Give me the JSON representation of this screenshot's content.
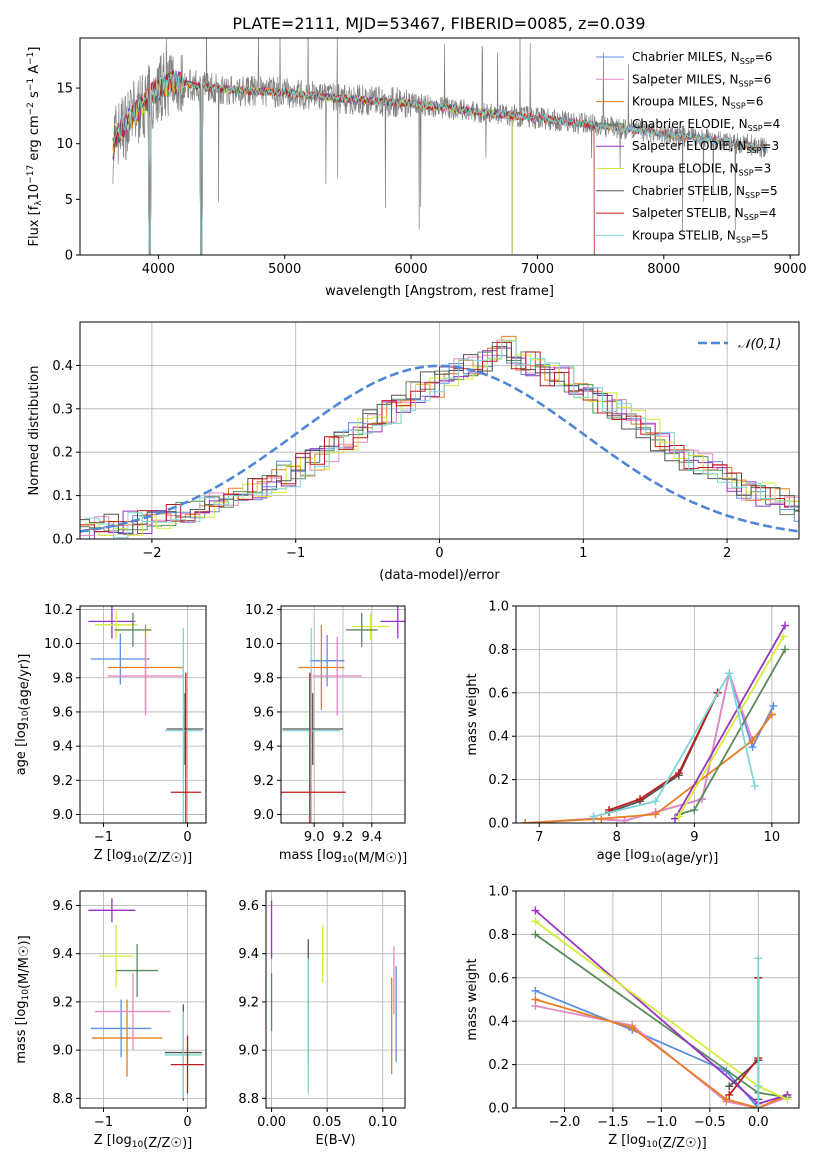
{
  "figure_title": "PLATE=2111, MJD=53467, FIBERID=0085, z=0.039",
  "colors": {
    "Chabrier MILES": "#5b8ee6",
    "Salpeter MILES": "#e58ac7",
    "Kroupa MILES": "#e87d22",
    "Chabrier ELODIE": "#5a8a5a",
    "Salpeter ELODIE": "#9a33c1",
    "Kroupa ELODIE": "#d4ec3a",
    "Chabrier STELIB": "#555555",
    "Salpeter STELIB": "#c01b1b",
    "Kroupa STELIB": "#7fd6d6",
    "data": "#808080",
    "normal": "#4f86d6",
    "grid": "#b0b0b0"
  },
  "chart_data": [
    {
      "id": "spectrum",
      "type": "line",
      "title": "PLATE=2111, MJD=53467, FIBERID=0085, z=0.039",
      "xlabel": "wavelength [Angstrom, rest frame]",
      "ylabel": "Flux [f_λ10^-17 erg cm^-2 s^-1 A^-1]",
      "xlim": [
        3380,
        9070
      ],
      "ylim": [
        0,
        19.5
      ],
      "xticks": [
        4000,
        5000,
        6000,
        7000,
        8000,
        9000
      ],
      "yticks": [
        0,
        5,
        10,
        15
      ],
      "grid": false,
      "legend_position": "top-right",
      "legend": [
        {
          "label": "Chabrier MILES, N",
          "sub": "SSP",
          "value": "=6",
          "series": "Chabrier MILES"
        },
        {
          "label": "Salpeter MILES, N",
          "sub": "SSP",
          "value": "=6",
          "series": "Salpeter MILES"
        },
        {
          "label": "Kroupa MILES, N",
          "sub": "SSP",
          "value": "=6",
          "series": "Kroupa MILES"
        },
        {
          "label": "Chabrier ELODIE, N",
          "sub": "SSP",
          "value": "=4",
          "series": "Chabrier ELODIE"
        },
        {
          "label": "Salpeter ELODIE, N",
          "sub": "SSP",
          "value": "=3",
          "series": "Salpeter ELODIE"
        },
        {
          "label": "Kroupa ELODIE, N",
          "sub": "SSP",
          "value": "=3",
          "series": "Kroupa ELODIE"
        },
        {
          "label": "Chabrier STELIB, N",
          "sub": "SSP",
          "value": "=5",
          "series": "Chabrier STELIB"
        },
        {
          "label": "Salpeter STELIB, N",
          "sub": "SSP",
          "value": "=4",
          "series": "Salpeter STELIB"
        },
        {
          "label": "Kroupa STELIB, N",
          "sub": "SSP",
          "value": "=5",
          "series": "Kroupa STELIB"
        }
      ],
      "continuum": {
        "x": [
          3650,
          3800,
          3950,
          4100,
          4300,
          4600,
          5000,
          5500,
          6000,
          6500,
          7000,
          7500,
          8000,
          8500,
          8820
        ],
        "y": [
          10.5,
          12.5,
          14.5,
          15.6,
          15.2,
          14.8,
          14.6,
          14.0,
          13.6,
          12.9,
          12.3,
          11.6,
          10.9,
          10.2,
          9.6
        ]
      }
    },
    {
      "id": "residuals",
      "type": "histogram",
      "xlabel": "(data-model)/error",
      "ylabel": "Normed distribution",
      "xlim": [
        -2.5,
        2.5
      ],
      "ylim": [
        0,
        0.5
      ],
      "xticks": [
        -2,
        -1,
        0,
        1,
        2
      ],
      "yticks": [
        0,
        0.1,
        0.2,
        0.3,
        0.4
      ],
      "grid": true,
      "legend_position": "top-right",
      "legend_label": "𝒩(0,1)",
      "bin_width": 0.1,
      "reference_curve": "normal(0,1)",
      "histogram_base": [
        0.025,
        0.028,
        0.031,
        0.035,
        0.04,
        0.046,
        0.053,
        0.061,
        0.07,
        0.08,
        0.091,
        0.104,
        0.118,
        0.133,
        0.15,
        0.168,
        0.187,
        0.207,
        0.228,
        0.25,
        0.271,
        0.293,
        0.315,
        0.335,
        0.355,
        0.372,
        0.387,
        0.399,
        0.415,
        0.44,
        0.415,
        0.405,
        0.38,
        0.372,
        0.355,
        0.335,
        0.315,
        0.293,
        0.272,
        0.25,
        0.228,
        0.207,
        0.187,
        0.168,
        0.15,
        0.133,
        0.118,
        0.104,
        0.091,
        0.08,
        0.07
      ]
    },
    {
      "id": "age-vs-metallicity",
      "type": "scatter",
      "xlabel": "Z [log10(Z/Z☉)]",
      "ylabel": "age  [log10(age/yr)]",
      "xlim": [
        -1.28,
        0.22
      ],
      "ylim": [
        8.95,
        10.22
      ],
      "xticks": [
        -1,
        0
      ],
      "yticks": [
        9.0,
        9.2,
        9.4,
        9.6,
        9.8,
        10.0,
        10.2
      ],
      "grid": true,
      "points": [
        {
          "series": "Salpeter ELODIE",
          "x": -0.9,
          "xerr": 0.28,
          "y": 10.13,
          "yerr": 0.1
        },
        {
          "series": "Kroupa ELODIE",
          "x": -0.85,
          "xerr": 0.25,
          "y": 10.11,
          "yerr": 0.08
        },
        {
          "series": "Chabrier ELODIE",
          "x": -0.65,
          "xerr": 0.22,
          "y": 10.08,
          "yerr": 0.1
        },
        {
          "series": "Chabrier MILES",
          "x": -0.8,
          "xerr": 0.35,
          "y": 9.91,
          "yerr": 0.15
        },
        {
          "series": "Kroupa MILES",
          "x": -0.5,
          "xerr": 0.45,
          "y": 9.86,
          "yerr": 0.25
        },
        {
          "series": "Salpeter MILES",
          "x": -0.5,
          "xerr": 0.45,
          "y": 9.81,
          "yerr": 0.23
        },
        {
          "series": "Chabrier STELIB",
          "x": -0.03,
          "xerr": 0.22,
          "y": 9.5,
          "yerr": 0.21
        },
        {
          "series": "Kroupa STELIB",
          "x": -0.05,
          "xerr": 0.22,
          "y": 9.49,
          "yerr": 0.6
        },
        {
          "series": "Salpeter STELIB",
          "x": -0.02,
          "xerr": 0.18,
          "y": 9.13,
          "yerr": 0.7
        }
      ]
    },
    {
      "id": "age-vs-mass",
      "type": "scatter",
      "xlabel": "mass [log10(M/M☉)]",
      "ylabel": "",
      "xlim": [
        8.77,
        9.63
      ],
      "ylim": [
        8.95,
        10.22
      ],
      "xticks": [
        9.0,
        9.2,
        9.4
      ],
      "yticks": [
        9.0,
        9.2,
        9.4,
        9.6,
        9.8,
        10.0,
        10.2
      ],
      "grid": true,
      "points": [
        {
          "series": "Salpeter ELODIE",
          "x": 9.58,
          "xerr": 0.12,
          "y": 10.13,
          "yerr": 0.1
        },
        {
          "series": "Kroupa ELODIE",
          "x": 9.39,
          "xerr": 0.13,
          "y": 10.1,
          "yerr": 0.08
        },
        {
          "series": "Chabrier ELODIE",
          "x": 9.33,
          "xerr": 0.11,
          "y": 10.08,
          "yerr": 0.1
        },
        {
          "series": "Chabrier MILES",
          "x": 9.09,
          "xerr": 0.12,
          "y": 9.9,
          "yerr": 0.15
        },
        {
          "series": "Kroupa MILES",
          "x": 9.05,
          "xerr": 0.16,
          "y": 9.86,
          "yerr": 0.25
        },
        {
          "series": "Salpeter MILES",
          "x": 9.16,
          "xerr": 0.17,
          "y": 9.81,
          "yerr": 0.23
        },
        {
          "series": "Chabrier STELIB",
          "x": 8.99,
          "xerr": 0.21,
          "y": 9.5,
          "yerr": 0.21
        },
        {
          "series": "Kroupa STELIB",
          "x": 8.98,
          "xerr": 0.2,
          "y": 9.49,
          "yerr": 0.6
        },
        {
          "series": "Salpeter STELIB",
          "x": 8.97,
          "xerr": 0.25,
          "y": 9.13,
          "yerr": 0.7
        }
      ]
    },
    {
      "id": "massweight-vs-age",
      "type": "line",
      "xlabel": "age  [log10(age/yr)]",
      "ylabel": "mass weight",
      "xlim": [
        6.7,
        10.35
      ],
      "ylim": [
        0,
        1.0
      ],
      "xticks": [
        7,
        8,
        9,
        10
      ],
      "yticks": [
        0.0,
        0.2,
        0.4,
        0.6,
        0.8,
        1.0
      ],
      "grid": true,
      "series": [
        {
          "name": "Chabrier MILES",
          "x": [
            6.82,
            7.7,
            8.1,
            8.5,
            9.1,
            9.45,
            9.75,
            10.02
          ],
          "y": [
            0.0,
            0.02,
            0.01,
            0.05,
            0.11,
            0.69,
            0.35,
            0.54
          ]
        },
        {
          "name": "Salpeter MILES",
          "x": [
            6.82,
            7.7,
            8.1,
            8.5,
            9.1,
            9.45,
            9.75,
            10.0
          ],
          "y": [
            0.0,
            0.02,
            0.01,
            0.05,
            0.11,
            0.69,
            0.38,
            0.5
          ]
        },
        {
          "name": "Kroupa MILES",
          "x": [
            6.82,
            7.8,
            8.5,
            9.75,
            10.0
          ],
          "y": [
            0.0,
            0.02,
            0.04,
            0.38,
            0.5
          ]
        },
        {
          "name": "Chabrier ELODIE",
          "x": [
            8.8,
            9.0,
            10.17
          ],
          "y": [
            0.04,
            0.06,
            0.8
          ]
        },
        {
          "name": "Salpeter ELODIE",
          "x": [
            8.75,
            10.17
          ],
          "y": [
            0.02,
            0.91
          ]
        },
        {
          "name": "Kroupa ELODIE",
          "x": [
            8.8,
            10.15
          ],
          "y": [
            0.03,
            0.86
          ]
        },
        {
          "name": "Chabrier STELIB",
          "x": [
            7.9,
            8.3,
            8.8,
            9.3
          ],
          "y": [
            0.05,
            0.1,
            0.22,
            0.6
          ]
        },
        {
          "name": "Salpeter STELIB",
          "x": [
            7.9,
            8.3,
            8.8,
            9.3
          ],
          "y": [
            0.06,
            0.11,
            0.23,
            0.6
          ]
        },
        {
          "name": "Kroupa STELIB",
          "x": [
            7.7,
            8.5,
            9.45,
            9.78
          ],
          "y": [
            0.03,
            0.1,
            0.69,
            0.17
          ]
        }
      ]
    },
    {
      "id": "mass-vs-metallicity",
      "type": "scatter",
      "xlabel": "Z [log10(Z/Z☉)]",
      "ylabel": "mass [log10(M/M☉)]",
      "xlim": [
        -1.28,
        0.22
      ],
      "ylim": [
        8.76,
        9.66
      ],
      "xticks": [
        -1,
        0
      ],
      "yticks": [
        8.8,
        9.0,
        9.2,
        9.4,
        9.6
      ],
      "grid": true,
      "points": [
        {
          "series": "Salpeter ELODIE",
          "x": -0.9,
          "xerr": 0.28,
          "y": 9.58,
          "yerr": 0.05
        },
        {
          "series": "Kroupa ELODIE",
          "x": -0.85,
          "xerr": 0.2,
          "y": 9.39,
          "yerr": 0.13
        },
        {
          "series": "Chabrier ELODIE",
          "x": -0.6,
          "xerr": 0.25,
          "y": 9.33,
          "yerr": 0.11
        },
        {
          "series": "Chabrier MILES",
          "x": -0.79,
          "xerr": 0.36,
          "y": 9.09,
          "yerr": 0.12
        },
        {
          "series": "Kroupa MILES",
          "x": -0.72,
          "xerr": 0.42,
          "y": 9.05,
          "yerr": 0.16
        },
        {
          "series": "Salpeter MILES",
          "x": -0.65,
          "xerr": 0.45,
          "y": 9.16,
          "yerr": 0.16
        },
        {
          "series": "Chabrier STELIB",
          "x": -0.05,
          "xerr": 0.22,
          "y": 8.99,
          "yerr": 0.2
        },
        {
          "series": "Kroupa STELIB",
          "x": -0.05,
          "xerr": 0.22,
          "y": 8.98,
          "yerr": 0.18
        },
        {
          "series": "Salpeter STELIB",
          "x": 0.0,
          "xerr": 0.2,
          "y": 8.94,
          "yerr": 0.12
        }
      ]
    },
    {
      "id": "mass-vs-ebv",
      "type": "scatter",
      "xlabel": "E(B-V)",
      "ylabel": "",
      "xlim": [
        -0.005,
        0.12
      ],
      "ylim": [
        8.76,
        9.66
      ],
      "xticks": [
        0.0,
        0.05,
        0.1
      ],
      "yticks": [
        8.8,
        9.0,
        9.2,
        9.4,
        9.6
      ],
      "grid": true,
      "points": [
        {
          "series": "Salpeter ELODIE",
          "x": 0.0,
          "xerr": 0,
          "y": 9.5,
          "yerr": 0.12
        },
        {
          "series": "Chabrier ELODIE",
          "x": 0.0,
          "xerr": 0,
          "y": 9.2,
          "yerr": 0.12
        },
        {
          "series": "Chabrier STELIB",
          "x": 0.033,
          "xerr": 0,
          "y": 9.2,
          "yerr": 0.26
        },
        {
          "series": "Kroupa STELIB",
          "x": 0.033,
          "xerr": 0,
          "y": 9.1,
          "yerr": 0.28
        },
        {
          "series": "Kroupa ELODIE",
          "x": 0.046,
          "xerr": 0,
          "y": 9.4,
          "yerr": 0.12
        },
        {
          "series": "Salpeter MILES",
          "x": 0.11,
          "xerr": 0,
          "y": 9.29,
          "yerr": 0.14
        },
        {
          "series": "Kroupa MILES",
          "x": 0.108,
          "xerr": 0,
          "y": 9.1,
          "yerr": 0.2
        },
        {
          "series": "Chabrier MILES",
          "x": 0.112,
          "xerr": 0,
          "y": 9.15,
          "yerr": 0.2
        }
      ]
    },
    {
      "id": "massweight-vs-metallicity",
      "type": "line",
      "xlabel": "Z [log10(Z/Z☉)]",
      "ylabel": "mass weight",
      "xlim": [
        -2.5,
        0.42
      ],
      "ylim": [
        0,
        1.0
      ],
      "xticks": [
        -2.0,
        -1.5,
        -1.0,
        -0.5,
        0.0
      ],
      "yticks": [
        0.0,
        0.2,
        0.4,
        0.6,
        0.8,
        1.0
      ],
      "grid": true,
      "series": [
        {
          "name": "Chabrier MILES",
          "x": [
            -2.3,
            -1.3,
            -0.33,
            0.0,
            0.3
          ],
          "y": [
            0.54,
            0.36,
            0.17,
            0.0,
            0.06
          ]
        },
        {
          "name": "Salpeter MILES",
          "x": [
            -2.3,
            -1.3,
            -0.33,
            0.0,
            0.3
          ],
          "y": [
            0.47,
            0.38,
            0.03,
            0.0,
            0.05
          ]
        },
        {
          "name": "Kroupa MILES",
          "x": [
            -2.3,
            -1.3,
            -0.33,
            0.0,
            0.3
          ],
          "y": [
            0.5,
            0.37,
            0.04,
            0.0,
            0.06
          ]
        },
        {
          "name": "Chabrier ELODIE",
          "x": [
            -2.3,
            0.0,
            0.3
          ],
          "y": [
            0.8,
            0.07,
            0.05
          ]
        },
        {
          "name": "Salpeter ELODIE",
          "x": [
            -2.3,
            0.0,
            0.3
          ],
          "y": [
            0.91,
            0.02,
            0.06
          ]
        },
        {
          "name": "Kroupa ELODIE",
          "x": [
            -2.3,
            0.0,
            0.3
          ],
          "y": [
            0.86,
            0.1,
            0.04
          ]
        },
        {
          "name": "Chabrier STELIB",
          "x": [
            -0.3,
            0.0,
            0.0,
            0.0
          ],
          "y": [
            0.1,
            0.22,
            0.6,
            0.04
          ]
        },
        {
          "name": "Salpeter STELIB",
          "x": [
            -0.3,
            0.0,
            0.0
          ],
          "y": [
            0.06,
            0.23,
            0.6
          ]
        },
        {
          "name": "Kroupa STELIB",
          "x": [
            0.0,
            0.0,
            0.0
          ],
          "y": [
            0.69,
            0.1,
            0.0
          ]
        }
      ]
    }
  ]
}
